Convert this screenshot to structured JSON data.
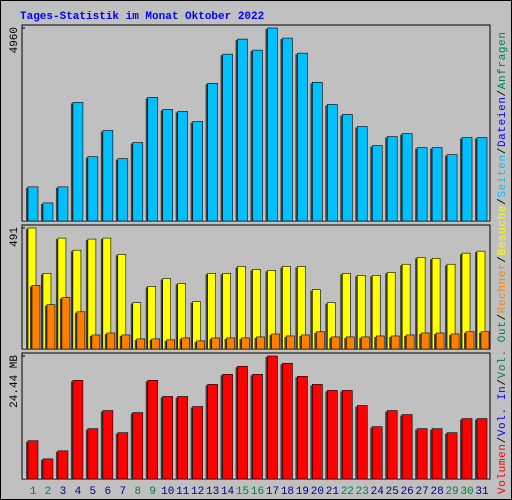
{
  "title": "Tages-Statistik im Monat Oktober 2022",
  "categories": [
    "1",
    "2",
    "3",
    "4",
    "5",
    "6",
    "7",
    "8",
    "9",
    "10",
    "11",
    "12",
    "13",
    "14",
    "15",
    "16",
    "17",
    "18",
    "19",
    "20",
    "21",
    "22",
    "23",
    "24",
    "25",
    "26",
    "27",
    "28",
    "29",
    "30",
    "31"
  ],
  "highlight": [
    0,
    1,
    7,
    8,
    14,
    15,
    21,
    22,
    28,
    29
  ],
  "highlight_color": "#008040",
  "label_color": "#000080",
  "separator": "/",
  "chart_data": [
    {
      "type": "bar",
      "ylim": [
        0,
        4960
      ],
      "yticks": [
        4960
      ],
      "series": [
        {
          "name": "Seiten",
          "color": "#00c0ff",
          "values": [
            878,
            465,
            878,
            3048,
            1653,
            2325,
            1601,
            2015,
            3177,
            2867,
            2815,
            2557,
            3539,
            4288,
            4675,
            4391,
            4960,
            4701,
            4314,
            3565,
            2996,
            2738,
            2428,
            1937,
            2170,
            2247,
            1886,
            1886,
            1705,
            2144,
            2144
          ]
        }
      ],
      "extra_legend": [
        {
          "label": "Dateien",
          "color": "#0000ff"
        },
        {
          "label": "Anfragen",
          "color": "#00805c"
        }
      ]
    },
    {
      "type": "bar",
      "ylim": [
        0,
        491
      ],
      "yticks": [
        491
      ],
      "series": [
        {
          "name": "Besuche",
          "color": "#ffff00",
          "values": [
            491,
            307,
            450,
            401,
            446,
            450,
            384,
            188,
            254,
            286,
            266,
            192,
            307,
            307,
            335,
            323,
            319,
            335,
            335,
            241,
            188,
            307,
            299,
            299,
            311,
            344,
            372,
            368,
            344,
            389,
            397
          ]
        },
        {
          "name": "Rechner",
          "color": "#ff8000",
          "values": [
            258,
            180,
            209,
            151,
            57,
            65,
            57,
            41,
            41,
            37,
            45,
            33,
            45,
            45,
            45,
            49,
            61,
            53,
            57,
            70,
            49,
            49,
            49,
            53,
            53,
            57,
            65,
            65,
            61,
            70,
            70
          ]
        }
      ],
      "extra_legend": []
    },
    {
      "type": "bar",
      "ylim": [
        0,
        24.44
      ],
      "yticks": [
        {
          "value": 24.44,
          "label": "24.44 MB"
        }
      ],
      "series": [
        {
          "name": "Volumen",
          "color": "#ff0000",
          "values": [
            7.6,
            4.0,
            5.6,
            19.6,
            10.0,
            13.6,
            9.2,
            13.2,
            19.6,
            16.4,
            16.4,
            14.4,
            18.8,
            20.8,
            22.4,
            20.8,
            24.44,
            23.0,
            20.4,
            18.8,
            17.6,
            17.6,
            14.6,
            10.4,
            13.6,
            12.8,
            10.0,
            10.0,
            9.2,
            12.0,
            12.0
          ]
        }
      ],
      "extra_legend": [
        {
          "label": "Vol. In",
          "color": "#0000ff"
        },
        {
          "label": "Vol. Out",
          "color": "#00805c"
        }
      ]
    }
  ]
}
